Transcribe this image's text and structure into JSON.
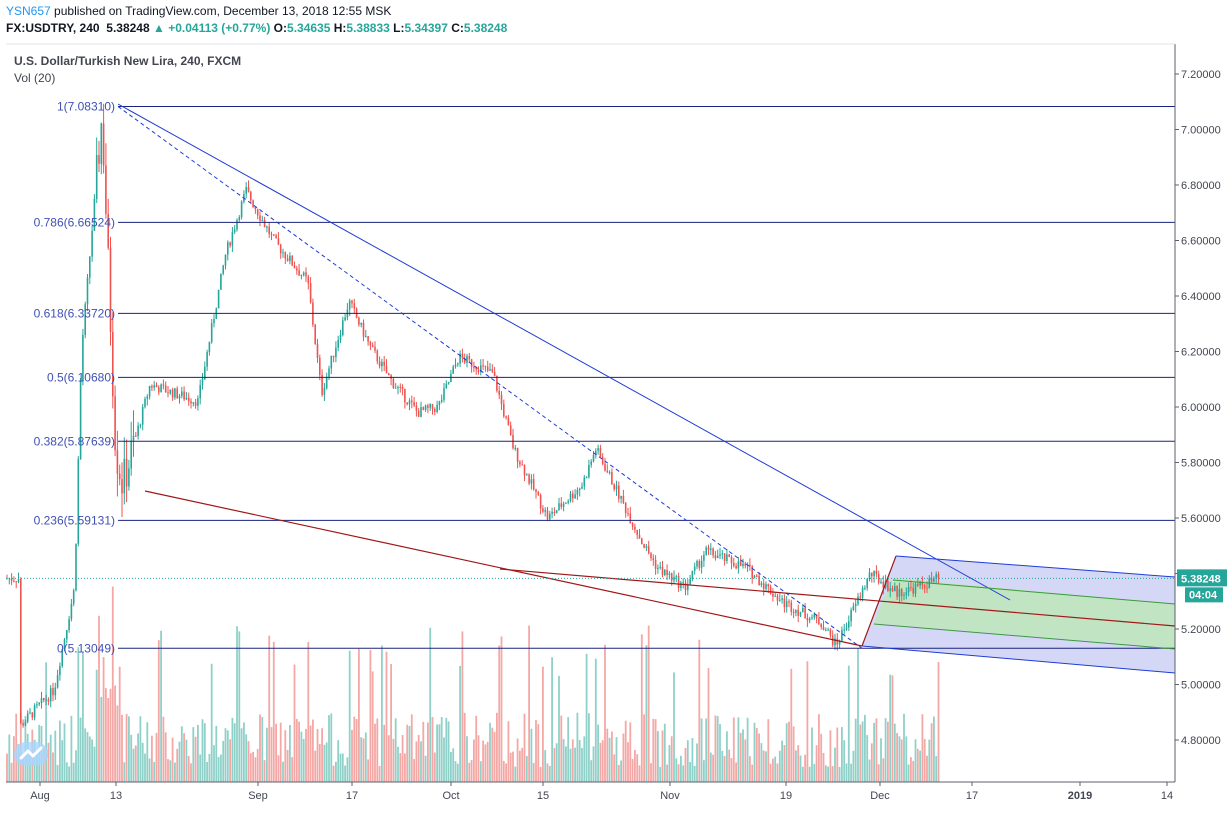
{
  "header": {
    "user": "YSN657",
    "published_text": "published on TradingView.com, December 13, 2018 12:55 MSK",
    "symbol": "FX:USDTRY, 240",
    "last": "5.38248",
    "change": "+0.04113 (+0.77%)",
    "o_label": "O:",
    "o": "5.34635",
    "h_label": "H:",
    "h": "5.38833",
    "l_label": "L:",
    "l": "5.34397",
    "c_label": "C:",
    "c": "5.38248"
  },
  "legend": {
    "title": "U.S. Dollar/Turkish New Lira, 240, FXCM",
    "volume": "Vol (20)"
  },
  "price_badge": {
    "price": "5.38248",
    "countdown": "04:04"
  },
  "colors": {
    "up": "#26a69a",
    "down": "#ef5350",
    "vol_up": "#8fd1c9",
    "vol_down": "#f4a8a6",
    "fib": "#1a237e",
    "trend": "#1e3cd6",
    "support": "#a01818",
    "channel_blue": "#c5cbf3",
    "channel_green": "#bde7b8"
  },
  "chart_data": {
    "type": "candlestick",
    "title": "U.S. Dollar/Turkish New Lira, 240, FXCM",
    "y_axis": {
      "ticks": [
        "7.20000",
        "7.00000",
        "6.80000",
        "6.60000",
        "6.40000",
        "6.20000",
        "6.00000",
        "5.80000",
        "5.60000",
        "5.40000",
        "5.20000",
        "5.00000",
        "4.80000"
      ],
      "range": [
        4.66,
        7.32
      ]
    },
    "x_axis": {
      "ticks": [
        "Aug",
        "13",
        "Sep",
        "17",
        "Oct",
        "15",
        "Nov",
        "19",
        "Dec",
        "17",
        "2019",
        "14"
      ]
    },
    "fib_levels": [
      {
        "label": "1(7.08310)",
        "value": 7.0831
      },
      {
        "label": "0.786(6.66524)",
        "value": 6.66524
      },
      {
        "label": "0.618(6.33720)",
        "value": 6.3372
      },
      {
        "label": "0.5(6.10680)",
        "value": 6.1068
      },
      {
        "label": "0.382(5.87639)",
        "value": 5.87639
      },
      {
        "label": "0.236(5.59131)",
        "value": 5.59131
      },
      {
        "label": "0(5.13049)",
        "value": 5.13049
      }
    ],
    "price_path": [
      [
        "Aug 01",
        4.85
      ],
      [
        "Aug 06",
        4.98
      ],
      [
        "Aug 09",
        5.35
      ],
      [
        "Aug 10",
        6.2
      ],
      [
        "Aug 13",
        7.05
      ],
      [
        "Aug 14",
        6.45
      ],
      [
        "Aug 15",
        5.85
      ],
      [
        "Aug 16",
        5.72
      ],
      [
        "Aug 20",
        6.08
      ],
      [
        "Aug 27",
        6.02
      ],
      [
        "Aug 31",
        6.55
      ],
      [
        "Sep 03",
        6.78
      ],
      [
        "Sep 07",
        6.6
      ],
      [
        "Sep 12",
        6.45
      ],
      [
        "Sep 14",
        6.05
      ],
      [
        "Sep 18",
        6.38
      ],
      [
        "Sep 21",
        6.22
      ],
      [
        "Sep 24",
        6.1
      ],
      [
        "Sep 28",
        5.98
      ],
      [
        "Oct 01",
        6.0
      ],
      [
        "Oct 04",
        6.18
      ],
      [
        "Oct 09",
        6.12
      ],
      [
        "Oct 12",
        5.85
      ],
      [
        "Oct 17",
        5.6
      ],
      [
        "Oct 22",
        5.72
      ],
      [
        "Oct 24",
        5.85
      ],
      [
        "Oct 31",
        5.5
      ],
      [
        "Nov 02",
        5.42
      ],
      [
        "Nov 06",
        5.35
      ],
      [
        "Nov 09",
        5.48
      ],
      [
        "Nov 15",
        5.42
      ],
      [
        "Nov 20",
        5.3
      ],
      [
        "Nov 26",
        5.22
      ],
      [
        "Nov 28",
        5.14
      ],
      [
        "Dec 03",
        5.4
      ],
      [
        "Dec 07",
        5.33
      ],
      [
        "Dec 11",
        5.36
      ],
      [
        "Dec 13",
        5.38248
      ]
    ],
    "current_price": 5.38248
  }
}
